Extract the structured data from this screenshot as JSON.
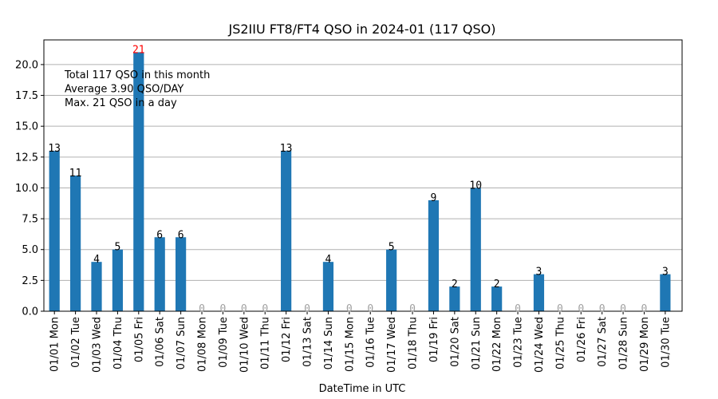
{
  "chart_data": {
    "type": "bar",
    "title": "JS2IIU FT8/FT4 QSO in 2024-01 (117 QSO)",
    "xlabel": "DateTime in UTC",
    "ylabel": "",
    "ylim": [
      0,
      22
    ],
    "yticks": [
      "0.0",
      "2.5",
      "5.0",
      "7.5",
      "10.0",
      "12.5",
      "15.0",
      "17.5",
      "20.0"
    ],
    "grid": "horizontal",
    "categories": [
      "01/01 Mon",
      "01/02 Tue",
      "01/03 Wed",
      "01/04 Thu",
      "01/05 Fri",
      "01/06 Sat",
      "01/07 Sun",
      "01/08 Mon",
      "01/09 Tue",
      "01/10 Wed",
      "01/11 Thu",
      "01/12 Fri",
      "01/13 Sat",
      "01/14 Sun",
      "01/15 Mon",
      "01/16 Tue",
      "01/17 Wed",
      "01/18 Thu",
      "01/19 Fri",
      "01/20 Sat",
      "01/21 Sun",
      "01/22 Mon",
      "01/23 Tue",
      "01/24 Wed",
      "01/25 Thu",
      "01/26 Fri",
      "01/27 Sat",
      "01/28 Sun",
      "01/29 Mon",
      "01/30 Tue"
    ],
    "values": [
      13,
      11,
      4,
      5,
      21,
      6,
      6,
      0,
      0,
      0,
      0,
      13,
      0,
      4,
      0,
      0,
      5,
      0,
      9,
      2,
      10,
      2,
      0,
      3,
      0,
      0,
      0,
      0,
      0,
      3
    ],
    "bar_color": "#1f77b4",
    "max_label_color": "#ff0000",
    "zero_label_color": "#a0a0a0",
    "label_color": "#000000",
    "annotations": [
      "Total 117 QSO in this month",
      "Average 3.90 QSO/DAY",
      "Max. 21 QSO in a day"
    ]
  }
}
